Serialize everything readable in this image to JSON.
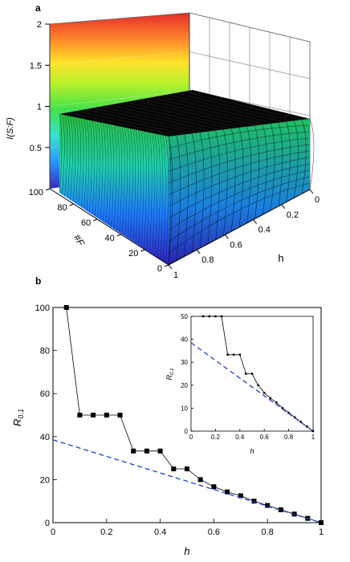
{
  "panels": {
    "a": {
      "letter": "a"
    },
    "b": {
      "letter": "b"
    }
  },
  "chart_data": [
    {
      "panel": "a",
      "type": "surface3d",
      "zlabel": "I(S:F)",
      "xlabel": "h",
      "ylabel": "#F",
      "zlim": [
        0,
        2.0
      ],
      "xlim": [
        0,
        1.0
      ],
      "ylim": [
        0,
        100
      ],
      "zticks": [
        0.5,
        1.0,
        1.5,
        2.0
      ],
      "xticks": [
        0.0,
        0.2,
        0.4,
        0.6,
        0.8,
        1.0
      ],
      "yticks": [
        0,
        20,
        40,
        60,
        80,
        100
      ],
      "colormap": [
        "#2a1fb5",
        "#1e90ff",
        "#2ee0d0",
        "#38e040",
        "#b8f020",
        "#ffe020",
        "#ff8020",
        "#e02020"
      ],
      "grid": true
    },
    {
      "panel": "b",
      "type": "line",
      "xlabel": "h",
      "ylabel": "R0.1",
      "xlim": [
        0,
        1.0
      ],
      "ylim": [
        0,
        100
      ],
      "xticks": [
        0.0,
        0.2,
        0.4,
        0.6,
        0.8,
        1.0
      ],
      "yticks": [
        0,
        20,
        40,
        60,
        80,
        100
      ],
      "series": [
        {
          "style": "line-markers",
          "color": "#000000",
          "x": [
            0.05,
            0.1,
            0.15,
            0.2,
            0.25,
            0.3,
            0.35,
            0.4,
            0.45,
            0.5,
            0.55,
            0.6,
            0.65,
            0.7,
            0.75,
            0.8,
            0.85,
            0.9,
            0.95,
            1.0
          ],
          "y": [
            100,
            50,
            50,
            50,
            50,
            33.3,
            33.3,
            33.3,
            25,
            25,
            20,
            16.7,
            14.3,
            12.5,
            10,
            8,
            6,
            4,
            2,
            0
          ]
        },
        {
          "style": "dashed",
          "color": "#1f3fd6",
          "x": [
            0.0,
            1.0
          ],
          "y": [
            38.5,
            0
          ]
        }
      ],
      "inset": {
        "xlabel": "h",
        "ylabel": "R0.1",
        "xlim": [
          0,
          1.0
        ],
        "ylim": [
          0,
          50
        ],
        "xticks": [
          0.0,
          0.2,
          0.4,
          0.6,
          0.8,
          1.0
        ],
        "yticks": [
          0,
          10,
          20,
          30,
          40,
          50
        ]
      }
    }
  ]
}
